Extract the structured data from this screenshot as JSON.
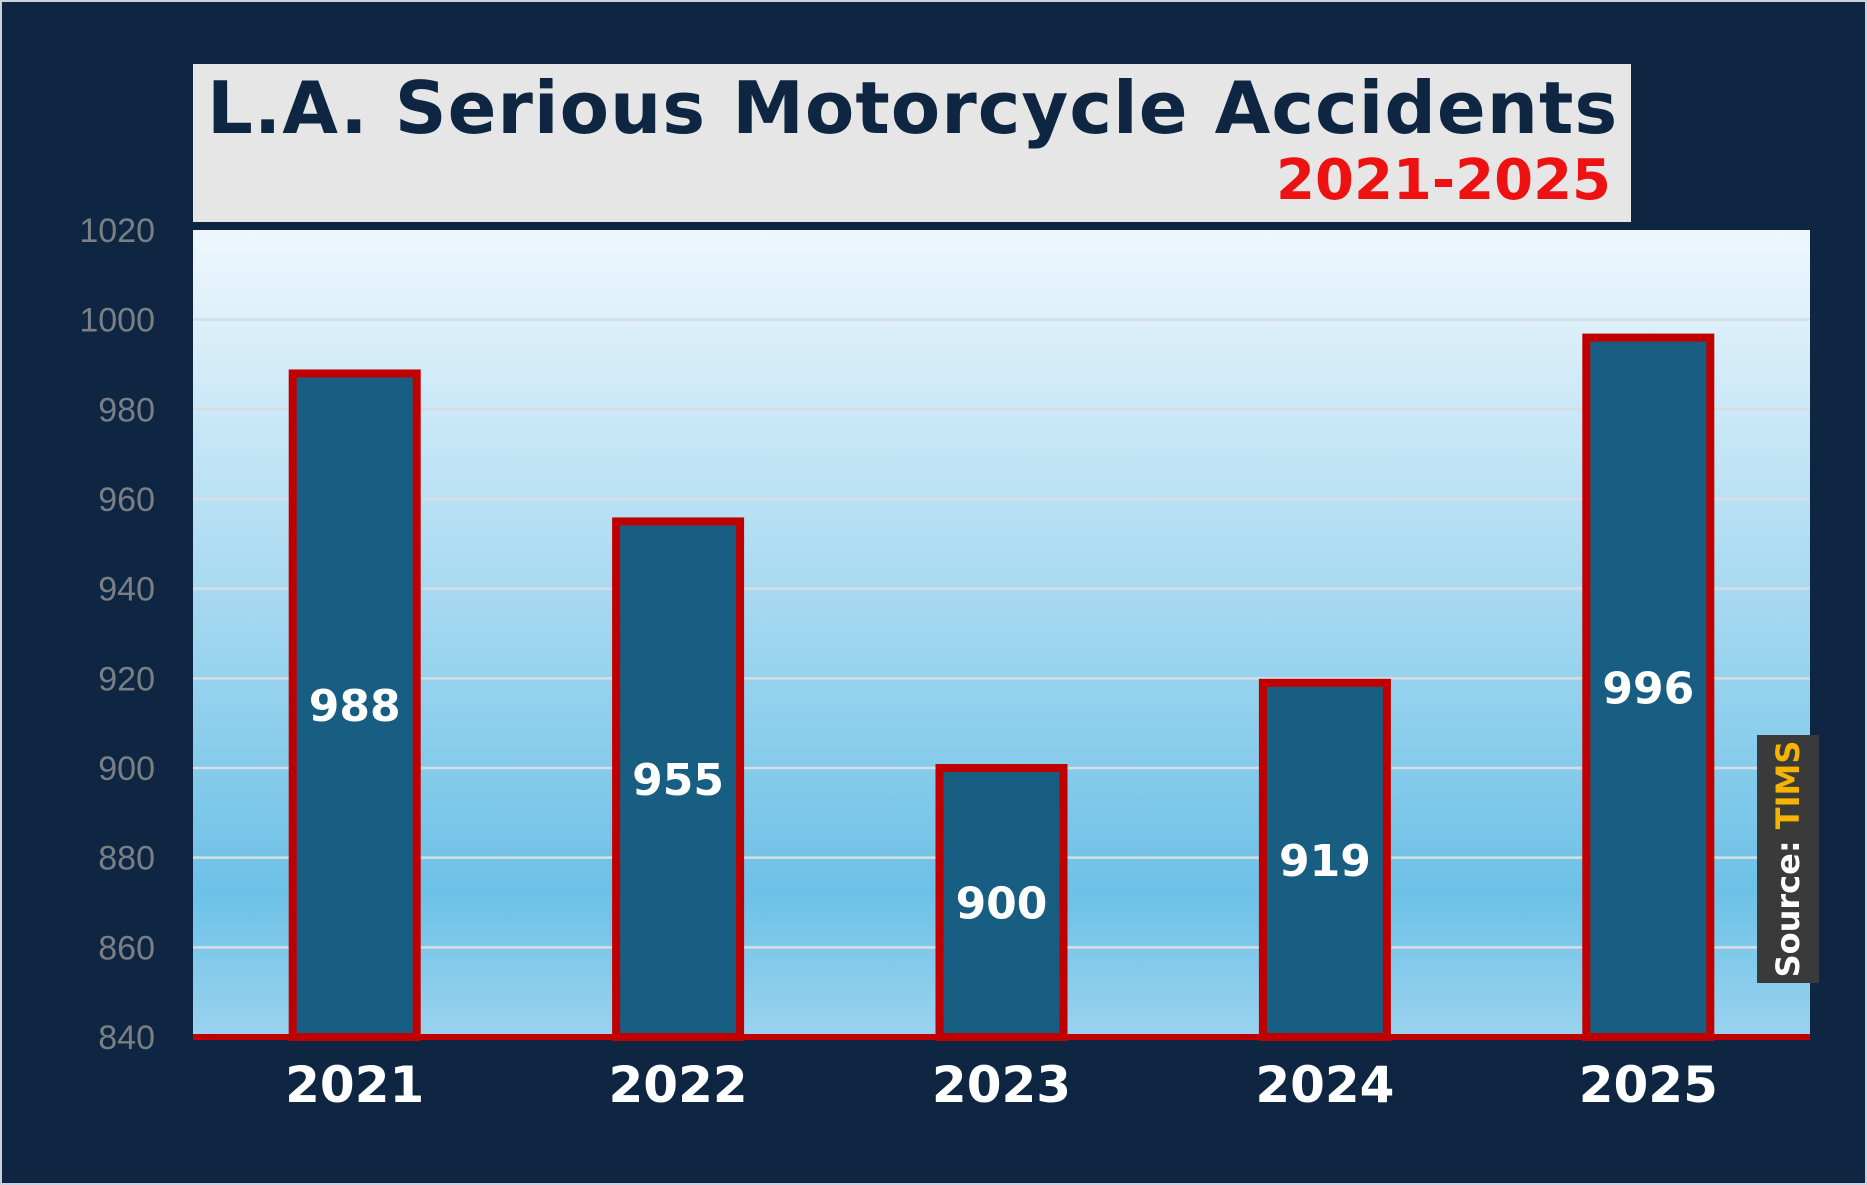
{
  "colors": {
    "background": "#0f2642",
    "bar_fill": "#185e82",
    "bar_border": "#c00000",
    "title_box": "#e6e6e6",
    "title_text": "#0f2642",
    "subtitle_text": "#ee1111",
    "tick_text": "#7a7f86",
    "source_name": "#f5b400"
  },
  "source": {
    "label": "Source: ",
    "name": "TIMS"
  },
  "chart_data": {
    "type": "bar",
    "title": "L.A. Serious Motorcycle Accidents",
    "subtitle": "2021-2025",
    "xlabel": "",
    "ylabel": "",
    "categories": [
      "2021",
      "2022",
      "2023",
      "2024",
      "2025"
    ],
    "values": [
      988,
      955,
      900,
      919,
      996
    ],
    "data_labels": [
      "988",
      "955",
      "900",
      "919",
      "996"
    ],
    "ylim": [
      840,
      1020
    ],
    "yticks": [
      840,
      860,
      880,
      900,
      920,
      940,
      960,
      980,
      1000,
      1020
    ],
    "grid": true,
    "legend": "none"
  }
}
